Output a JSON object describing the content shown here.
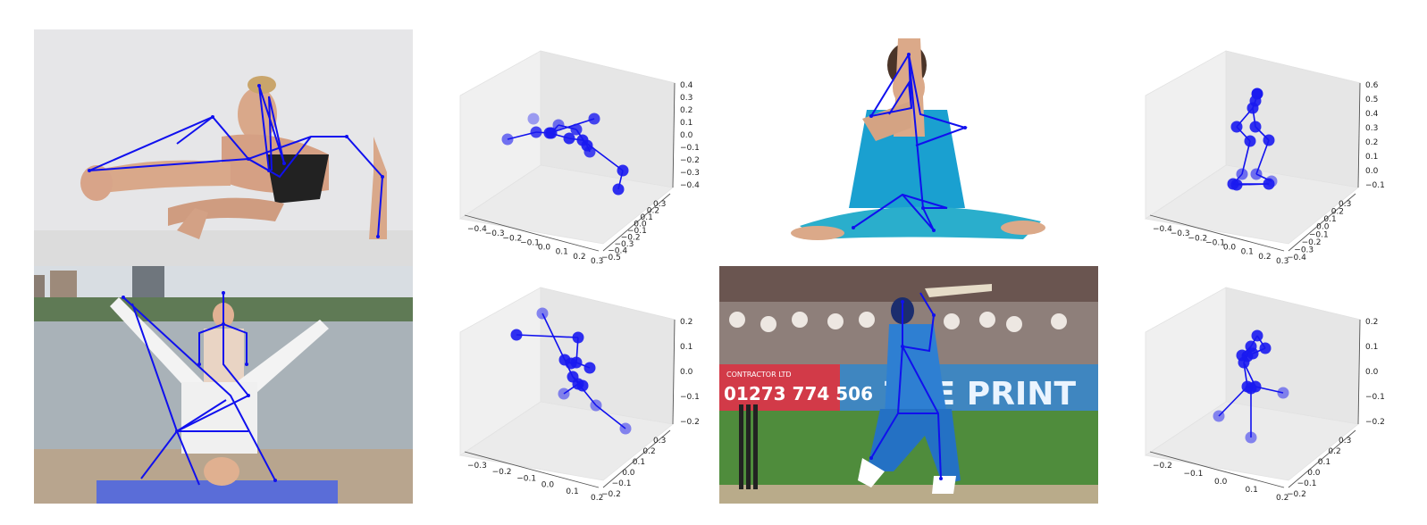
{
  "panels": [
    {
      "photo": "yoga-eight-angle-pose",
      "plot": {
        "z_ticks": [
          "0.4",
          "0.3",
          "0.2",
          "0.1",
          "0.0",
          "−0.1",
          "−0.2",
          "−0.3",
          "−0.4"
        ],
        "x_ticks": [
          "−0.4",
          "−0.3",
          "−0.2",
          "−0.1",
          "0.0",
          "0.1",
          "0.2",
          "0.3"
        ],
        "y_ticks": [
          "0.3",
          "0.2",
          "0.1",
          "0.0",
          "−0.1",
          "−0.2",
          "−0.3",
          "−0.4",
          "−0.5"
        ]
      }
    },
    {
      "photo": "yoga-cow-face-pose",
      "plot": {
        "z_ticks": [
          "0.6",
          "0.5",
          "0.4",
          "0.3",
          "0.2",
          "0.1",
          "0.0",
          "−0.1"
        ],
        "x_ticks": [
          "−0.4",
          "−0.3",
          "−0.2",
          "−0.1",
          "0.0",
          "0.1",
          "0.2",
          "0.3"
        ],
        "y_ticks": [
          "0.3",
          "0.2",
          "0.1",
          "0.0",
          "−0.1",
          "−0.2",
          "−0.3",
          "−0.4"
        ]
      }
    },
    {
      "photo": "acro-headstand-waterfront",
      "plot": {
        "z_ticks": [
          "0.2",
          "0.1",
          "0.0",
          "−0.1",
          "−0.2"
        ],
        "x_ticks": [
          "−0.3",
          "−0.2",
          "−0.1",
          "0.0",
          "0.1",
          "0.2"
        ],
        "y_ticks": [
          "0.3",
          "0.2",
          "0.1",
          "0.0",
          "−0.1",
          "−0.2"
        ]
      }
    },
    {
      "photo": "cricket-batsman-shot",
      "banner_number": "01273 774 506",
      "banner_slogan": "THE PRINT",
      "banner_small": "CONTRACTOR LTD",
      "plot": {
        "z_ticks": [
          "0.2",
          "0.1",
          "0.0",
          "−0.1",
          "−0.2"
        ],
        "x_ticks": [
          "−0.2",
          "−0.1",
          "0.0",
          "0.1",
          "0.2"
        ],
        "y_ticks": [
          "0.3",
          "0.2",
          "0.1",
          "0.0",
          "−0.1",
          "−0.2"
        ]
      }
    }
  ],
  "colors": {
    "skeleton": "#1010ee",
    "joint": "#1a1af0",
    "pane": "#ececec"
  }
}
